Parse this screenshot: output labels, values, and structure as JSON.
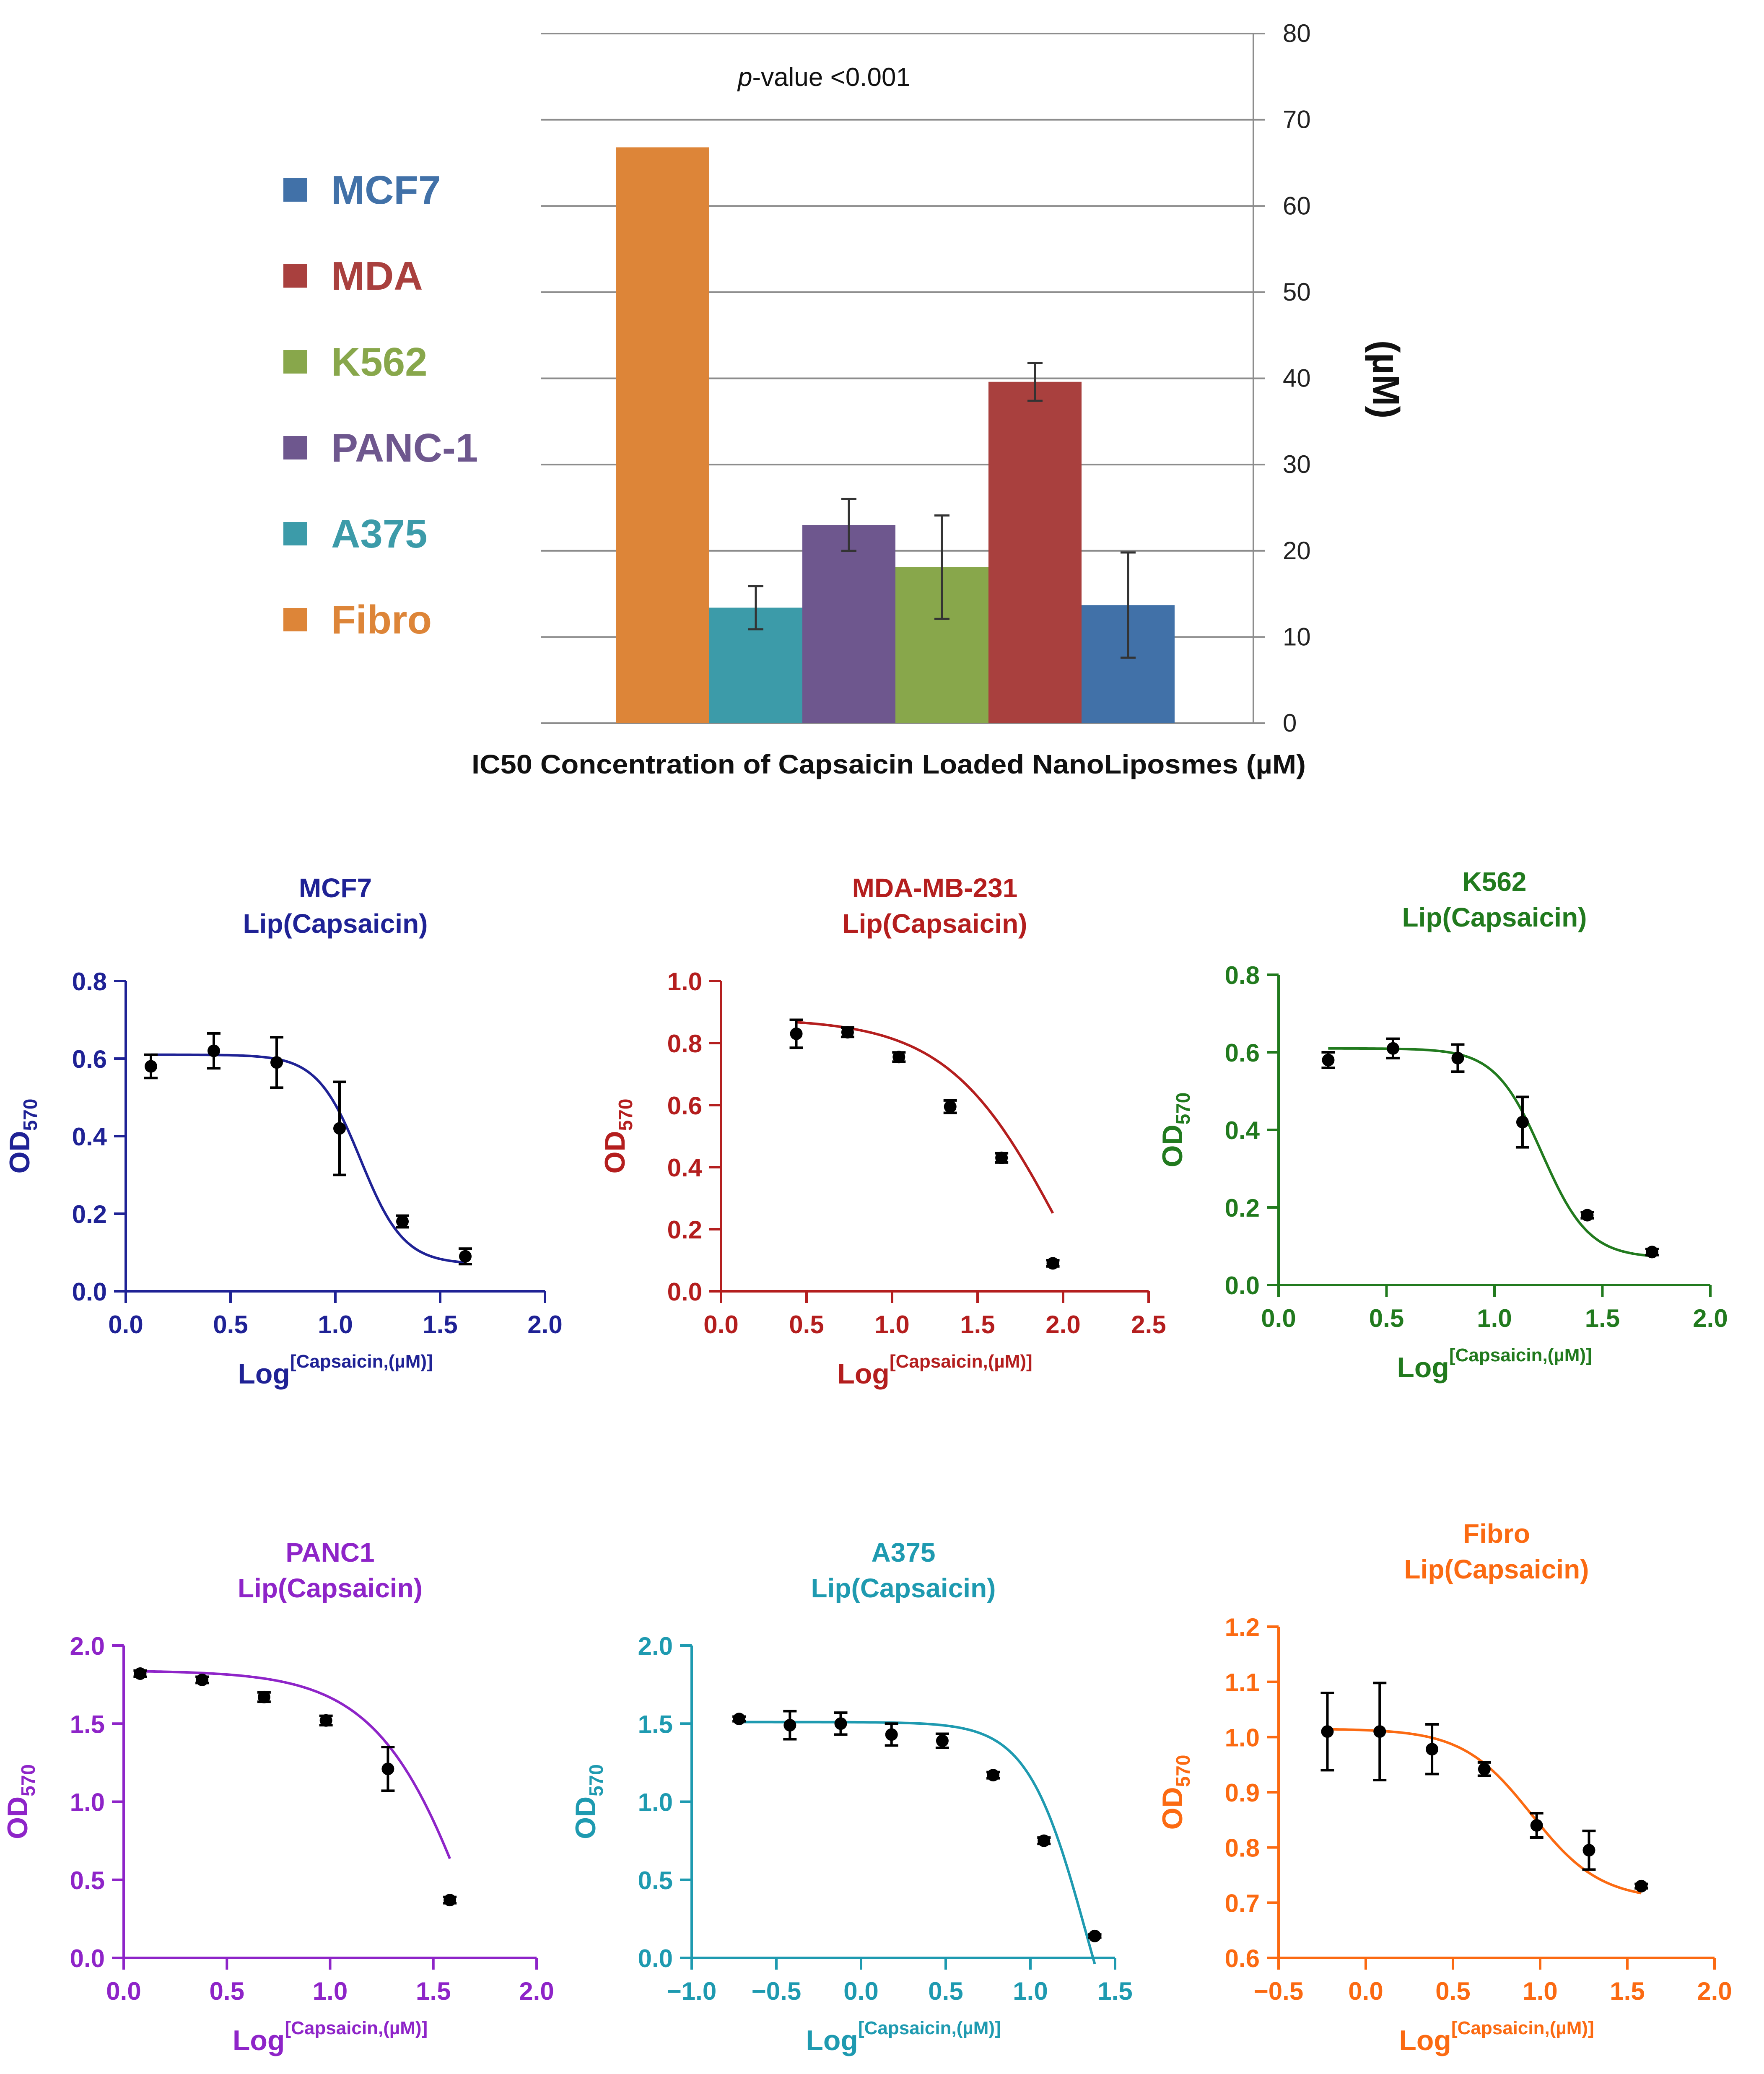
{
  "chart_data": [
    {
      "type": "bar",
      "title": "IC50 Concentration of Capsaicin Loaded NanoLiposmes  (µM)",
      "annotation": "p-value <0.001",
      "annotation_italic": "p",
      "annotation_rest": "-value <0.001",
      "ylabel": "(µM)",
      "ylim": [
        0,
        80
      ],
      "yticks": [
        0,
        10,
        20,
        30,
        40,
        50,
        60,
        70,
        80
      ],
      "grid": true,
      "legend_position": "left",
      "categories": [
        "Fibro",
        "A375",
        "PANC-1",
        "K562",
        "MDA",
        "MCF7"
      ],
      "values": [
        66.8,
        13.4,
        23.0,
        18.1,
        39.6,
        13.7
      ],
      "errors": [
        0,
        2.5,
        3.0,
        6.0,
        2.2,
        6.1
      ],
      "colors": [
        "#dd8538",
        "#3c9ba9",
        "#6e578e",
        "#88a74b",
        "#a9403e",
        "#4171a8"
      ],
      "legend": [
        {
          "label": "MCF7",
          "color": "#4171a8"
        },
        {
          "label": "MDA",
          "color": "#a9403e"
        },
        {
          "label": "K562",
          "color": "#88a74b"
        },
        {
          "label": "PANC-1",
          "color": "#6e578e"
        },
        {
          "label": "A375",
          "color": "#3c9ba9"
        },
        {
          "label": "Fibro",
          "color": "#dd8538"
        }
      ]
    },
    {
      "type": "scatter",
      "name": "MCF7",
      "title": "MCF7",
      "subtitle": "Lip(Capsaicin)",
      "color": "#1f2295",
      "ylabel_main": "OD",
      "ylabel_sub": "570",
      "xlabel_main": "Log",
      "xlabel_sup": "[Capsaicin,(µM)]",
      "xlim": [
        0,
        2
      ],
      "ylim": [
        0,
        0.8
      ],
      "xticks": [
        "0.0",
        "0.5",
        "1.0",
        "1.5",
        "2.0"
      ],
      "yticks": [
        "0.0",
        "0.2",
        "0.4",
        "0.6",
        "0.8"
      ],
      "x": [
        0.12,
        0.42,
        0.72,
        1.02,
        1.32,
        1.62
      ],
      "y": [
        0.58,
        0.62,
        0.59,
        0.42,
        0.18,
        0.09
      ],
      "err": [
        0.03,
        0.045,
        0.065,
        0.12,
        0.015,
        0.02
      ],
      "fit": {
        "top": 0.61,
        "bottom": 0.07,
        "logIC50": 1.12,
        "hill": 4.2
      }
    },
    {
      "type": "scatter",
      "name": "MDA-MB-231",
      "title": "MDA-MB-231",
      "subtitle": "Lip(Capsaicin)",
      "color": "#b41e1e",
      "ylabel_main": "OD",
      "ylabel_sub": "570",
      "xlabel_main": "Log",
      "xlabel_sup": "[Capsaicin,(µM)]",
      "xlim": [
        0,
        2.5
      ],
      "ylim": [
        0,
        1.0
      ],
      "xticks": [
        "0.0",
        "0.5",
        "1.0",
        "1.5",
        "2.0",
        "2.5"
      ],
      "yticks": [
        "0.0",
        "0.2",
        "0.4",
        "0.6",
        "0.8",
        "1.0"
      ],
      "x": [
        0.44,
        0.74,
        1.04,
        1.34,
        1.64,
        1.94
      ],
      "y": [
        0.83,
        0.835,
        0.755,
        0.595,
        0.43,
        0.09
      ],
      "err": [
        0.045,
        0.015,
        0.015,
        0.02,
        0.015,
        0.01
      ],
      "fit": {
        "top": 0.88,
        "bottom": -0.5,
        "logIC50": 2.0,
        "hill": 1.3
      }
    },
    {
      "type": "scatter",
      "name": "K562",
      "title": "K562",
      "subtitle": "Lip(Capsaicin)",
      "color": "#217a1e",
      "ylabel_main": "OD",
      "ylabel_sub": "570",
      "xlabel_main": "Log",
      "xlabel_sup": "[Capsaicin,(µM)]",
      "xlim": [
        0,
        2
      ],
      "ylim": [
        0,
        0.8
      ],
      "xticks": [
        "0.0",
        "0.5",
        "1.0",
        "1.5",
        "2.0"
      ],
      "yticks": [
        "0.0",
        "0.2",
        "0.4",
        "0.6",
        "0.8"
      ],
      "x": [
        0.23,
        0.53,
        0.83,
        1.13,
        1.43,
        1.73
      ],
      "y": [
        0.58,
        0.61,
        0.585,
        0.42,
        0.18,
        0.085
      ],
      "err": [
        0.02,
        0.025,
        0.035,
        0.065,
        0.008,
        0.008
      ],
      "fit": {
        "top": 0.61,
        "bottom": 0.07,
        "logIC50": 1.22,
        "hill": 4.0
      }
    },
    {
      "type": "scatter",
      "name": "PANC1",
      "title": "PANC1",
      "subtitle": "Lip(Capsaicin)",
      "color": "#8e24c8",
      "ylabel_main": "OD",
      "ylabel_sub": "570",
      "xlabel_main": "Log",
      "xlabel_sup": "[Capsaicin,(µM)]",
      "xlim": [
        0,
        2
      ],
      "ylim": [
        0,
        2.0
      ],
      "xticks": [
        "0.0",
        "0.5",
        "1.0",
        "1.5",
        "2.0"
      ],
      "yticks": [
        "0.0",
        "0.5",
        "1.0",
        "1.5",
        "2.0"
      ],
      "x": [
        0.08,
        0.38,
        0.68,
        0.98,
        1.28,
        1.58
      ],
      "y": [
        1.82,
        1.78,
        1.67,
        1.52,
        1.21,
        0.37
      ],
      "err": [
        0.02,
        0.02,
        0.03,
        0.03,
        0.14,
        0.02
      ],
      "fit": {
        "top": 1.84,
        "bottom": -2.0,
        "logIC50": 1.78,
        "hill": 1.7
      }
    },
    {
      "type": "scatter",
      "name": "A375",
      "title": "A375",
      "subtitle": "Lip(Capsaicin)",
      "color": "#1e9ab0",
      "ylabel_main": "OD",
      "ylabel_sub": "570",
      "xlabel_main": "Log",
      "xlabel_sup": "[Capsaicin,(µM)]",
      "xlim": [
        -1.0,
        1.5
      ],
      "ylim": [
        0,
        2.0
      ],
      "xticks": [
        "−1.0",
        "−0.5",
        "0.0",
        "0.5",
        "1.0",
        "1.5"
      ],
      "yticks": [
        "0.0",
        "0.5",
        "1.0",
        "1.5",
        "2.0"
      ],
      "x": [
        -0.72,
        -0.42,
        -0.12,
        0.18,
        0.48,
        0.78,
        1.08,
        1.38
      ],
      "y": [
        1.53,
        1.49,
        1.5,
        1.43,
        1.39,
        1.17,
        0.75,
        0.14
      ],
      "err": [
        0.015,
        0.09,
        0.07,
        0.07,
        0.045,
        0.02,
        0.02,
        0.01
      ],
      "fit": {
        "top": 1.51,
        "bottom": -1.2,
        "logIC50": 1.33,
        "hill": 2.5
      }
    },
    {
      "type": "scatter",
      "name": "Fibro",
      "title": "Fibro",
      "subtitle": "Lip(Capsaicin)",
      "color": "#fb6a12",
      "ylabel_main": "OD",
      "ylabel_sub": "570",
      "xlabel_main": "Log",
      "xlabel_sup": "[Capsaicin,(µM)]",
      "xlim": [
        -0.5,
        2.0
      ],
      "ylim": [
        0.6,
        1.2
      ],
      "xticks": [
        "−0.5",
        "0.0",
        "0.5",
        "1.0",
        "1.5",
        "2.0"
      ],
      "yticks": [
        "0.6",
        "0.7",
        "0.8",
        "0.9",
        "1.0",
        "1.1",
        "1.2"
      ],
      "x": [
        -0.22,
        0.08,
        0.38,
        0.68,
        0.98,
        1.28,
        1.58
      ],
      "y": [
        1.01,
        1.01,
        0.978,
        0.942,
        0.84,
        0.795,
        0.73
      ],
      "err": [
        0.07,
        0.088,
        0.045,
        0.012,
        0.022,
        0.035,
        0.004
      ],
      "fit": {
        "top": 1.015,
        "bottom": 0.705,
        "logIC50": 0.95,
        "hill": 2.2
      }
    }
  ]
}
